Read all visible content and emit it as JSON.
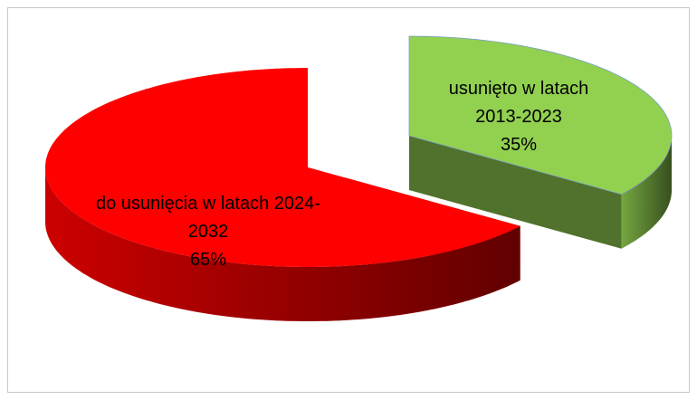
{
  "chart_data": {
    "type": "pie3d",
    "categories": [
      "do usunięcia w latach 2024-2032",
      "usunięto w latach 2013-2023"
    ],
    "values": [
      65,
      35
    ],
    "value_labels": [
      "65%",
      "35%"
    ],
    "colors": [
      "#ff0000",
      "#92d050"
    ]
  }
}
